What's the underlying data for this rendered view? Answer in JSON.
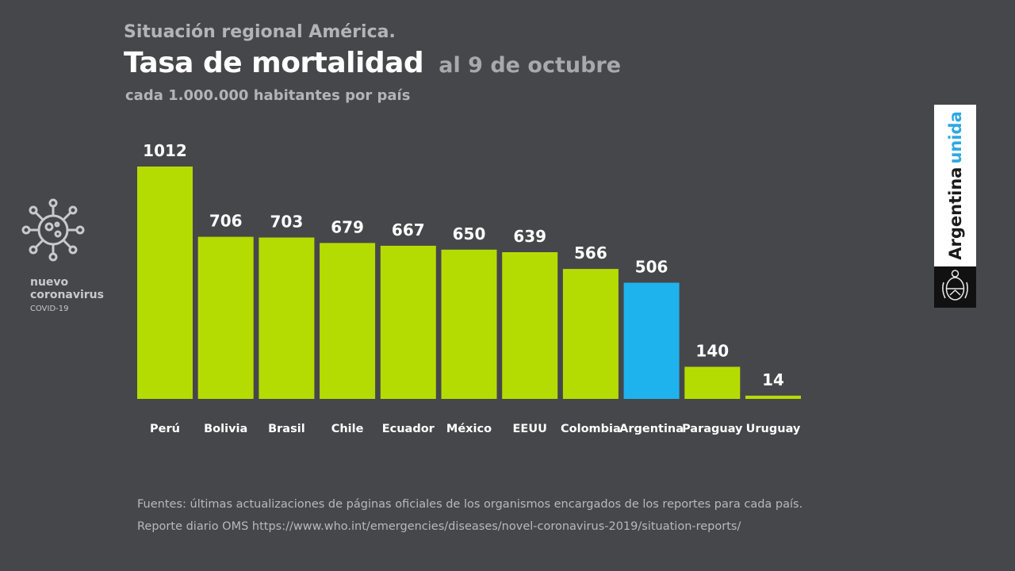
{
  "header": {
    "region": "Situación regional América.",
    "title": "Tasa de mortalidad",
    "date": "al 9 de octubre",
    "units": "cada 1.000.000 habitantes por país"
  },
  "chart_data": {
    "type": "bar",
    "title": "Tasa de mortalidad",
    "categories": [
      "Perú",
      "Bolivia",
      "Brasil",
      "Chile",
      "Ecuador",
      "México",
      "EEUU",
      "Colombia",
      "Argentina",
      "Paraguay",
      "Uruguay"
    ],
    "values": [
      1012,
      706,
      703,
      679,
      667,
      650,
      639,
      566,
      506,
      140,
      14
    ],
    "highlight": "Argentina",
    "colors": {
      "default": "#b5dc02",
      "highlight": "#1fb3ed"
    },
    "ylim": [
      0,
      1012
    ],
    "grid": false,
    "legend": "none",
    "data_labels": true
  },
  "logo": {
    "line1": "nuevo",
    "line2": "coronavirus",
    "line3": "COVID-19",
    "icon": "virus-icon"
  },
  "brand": {
    "word1": "Argentina",
    "word2": "unida",
    "icon": "coat-of-arms-icon"
  },
  "footer": {
    "line1": "Fuentes: últimas actualizaciones de páginas oficiales de los organismos encargados de los reportes para cada país.",
    "line2": "Reporte diario OMS https://www.who.int/emergencies/diseases/novel-coronavirus-2019/situation-reports/"
  }
}
